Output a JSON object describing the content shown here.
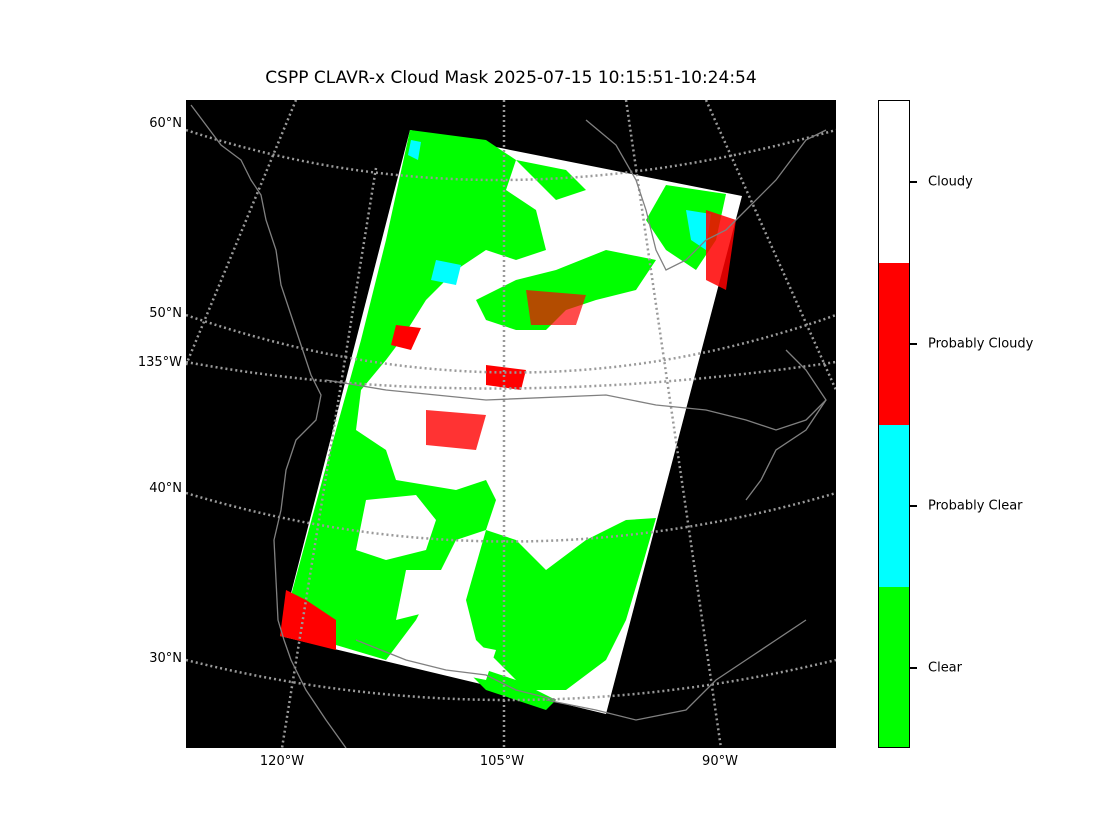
{
  "title": "CSPP CLAVR-x Cloud Mask 2025-07-15 10:15:51-10:24:54",
  "latitude_labels": [
    "60°N",
    "50°N",
    "135°W",
    "40°N",
    "30°N"
  ],
  "longitude_labels": [
    "120°W",
    "105°W",
    "90°W"
  ],
  "colorbar": {
    "categories": [
      {
        "label": "Cloudy",
        "color": "#ffffff"
      },
      {
        "label": "Probably Cloudy",
        "color": "#ff0000"
      },
      {
        "label": "Probably Clear",
        "color": "#00ffff"
      },
      {
        "label": "Clear",
        "color": "#00ff00"
      }
    ]
  },
  "colors": {
    "background": "#000000",
    "coastline": "#808080",
    "gridline": "#9a9a9a"
  }
}
